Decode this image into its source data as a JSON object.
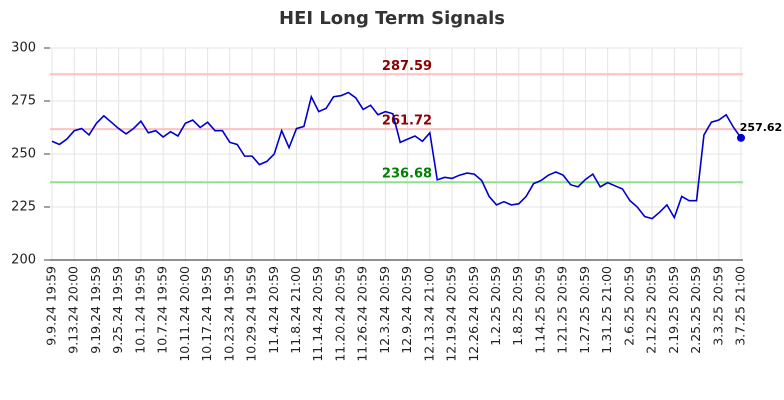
{
  "chart_data": {
    "type": "line",
    "title": "HEI Long Term Signals",
    "categories": [
      "9.9.24 19:59",
      null,
      null,
      "9.13.24 20:00",
      null,
      null,
      "9.19.24 19:59",
      null,
      null,
      "9.25.24 19:59",
      null,
      null,
      "10.1.24 19:59",
      null,
      null,
      "10.7.24 19:59",
      null,
      null,
      "10.11.24 20:00",
      null,
      null,
      "10.17.24 19:59",
      null,
      null,
      "10.23.24 19:59",
      null,
      null,
      "10.29.24 19:59",
      null,
      null,
      "11.4.24 20:59",
      null,
      null,
      "11.8.24 21:00",
      null,
      null,
      "11.14.24 20:59",
      null,
      null,
      "11.20.24 20:59",
      null,
      null,
      "11.26.24 20:59",
      null,
      null,
      "12.3.24 20:59",
      null,
      null,
      "12.9.24 20:59",
      null,
      null,
      "12.13.24 21:00",
      null,
      null,
      "12.19.24 20:59",
      null,
      null,
      "12.26.24 20:59",
      null,
      null,
      "1.2.25 20:59",
      null,
      null,
      "1.8.25 20:59",
      null,
      null,
      "1.14.25 20:59",
      null,
      null,
      "1.21.25 20:59",
      null,
      null,
      "1.27.25 20:59",
      null,
      null,
      "1.31.25 21:00",
      null,
      null,
      "2.6.25 20:59",
      null,
      null,
      "2.12.25 20:59",
      null,
      null,
      "2.19.25 20:59",
      null,
      null,
      "2.25.25 20:59",
      null,
      null,
      "3.3.25 20:59",
      null,
      null,
      "3.7.25 21:00"
    ],
    "values": [
      256,
      254.5,
      257,
      261,
      262,
      259,
      264.5,
      268,
      265,
      262,
      259.5,
      262,
      265.5,
      260,
      261,
      258,
      260.5,
      258.5,
      264.5,
      266,
      262.5,
      265,
      261,
      261,
      255.5,
      254.5,
      249,
      249,
      245,
      246.5,
      250,
      261,
      253,
      262,
      263,
      277,
      270,
      271.5,
      277,
      277.5,
      279,
      276.5,
      271,
      273,
      268.5,
      270,
      269,
      255.5,
      257,
      258.5,
      256,
      260,
      237.8,
      239,
      238.5,
      240,
      241,
      240.5,
      237.5,
      230,
      226,
      227.5,
      226,
      226.5,
      230,
      236,
      237.5,
      240,
      241.5,
      240,
      235.5,
      234.5,
      238,
      240.5,
      234.5,
      236.5,
      235,
      233.5,
      228,
      225,
      220.5,
      219.5,
      222.5,
      226,
      220,
      230,
      228,
      228,
      259,
      265,
      266,
      268.5,
      262.5,
      257.62
    ],
    "color": "#0000cd",
    "ylim": [
      200,
      300
    ],
    "yticks": [
      200,
      225,
      250,
      275,
      300
    ],
    "grid": true,
    "reference_lines": [
      {
        "value": 287.59,
        "color": "#ffc0c0",
        "label_color": "#8b0000"
      },
      {
        "value": 261.72,
        "color": "#ffc0c0",
        "label_color": "#8b0000"
      },
      {
        "value": 236.68,
        "color": "#90e090",
        "label_color": "#008000"
      }
    ]
  }
}
